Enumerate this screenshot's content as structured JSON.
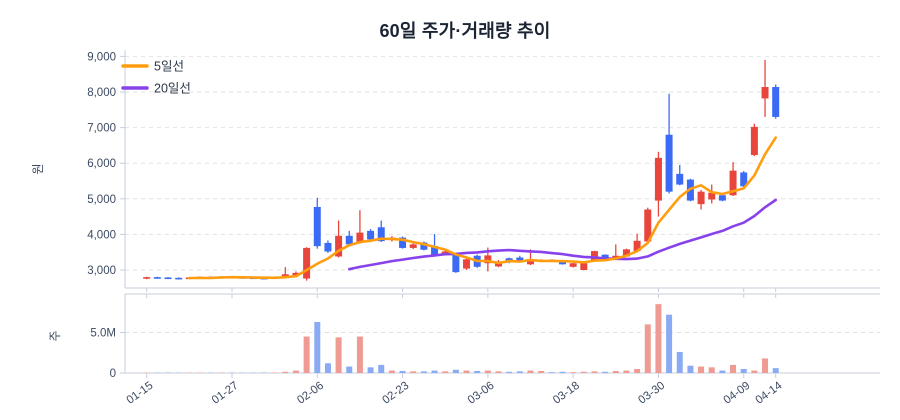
{
  "title": "60일 주가·거래량 추이",
  "legend": [
    {
      "label": "5일선",
      "color": "#ff9d0f"
    },
    {
      "label": "20일선",
      "color": "#8742ec"
    }
  ],
  "price_axis": {
    "unit_label": "원",
    "tick_values": [
      3000,
      4000,
      5000,
      6000,
      7000,
      8000,
      9000
    ],
    "tick_labels": [
      "3,000",
      "4,000",
      "5,000",
      "6,000",
      "7,000",
      "8,000",
      "9,000"
    ]
  },
  "volume_axis": {
    "unit_label": "주",
    "tick_values": [
      0,
      5
    ],
    "tick_labels": [
      "0",
      "5.0M"
    ]
  },
  "x_axis": {
    "ticks": [
      {
        "index": 0,
        "label": "01-15"
      },
      {
        "index": 8,
        "label": "01-27"
      },
      {
        "index": 16,
        "label": "02-06"
      },
      {
        "index": 24,
        "label": "02-23"
      },
      {
        "index": 32,
        "label": "03-06"
      },
      {
        "index": 40,
        "label": "03-18"
      },
      {
        "index": 48,
        "label": "03-30"
      },
      {
        "index": 56,
        "label": "04-09"
      },
      {
        "index": 59,
        "label": "04-14"
      }
    ]
  },
  "colors": {
    "up": "#e8463c",
    "down": "#3b6bf5",
    "vol_up": "#f09a94",
    "vol_down": "#8aabf3",
    "ma5": "#ff9d0f",
    "ma20": "#8742ec",
    "grid": "#e2e2e2",
    "axis": "#c7cfdb",
    "text": "#3c4a61",
    "title": "#1b2433"
  },
  "chart_data": {
    "type": "candlestick+volume",
    "title": "60일 주가·거래량 추이",
    "price_unit": "원",
    "volume_unit": "M주",
    "columns": [
      "open",
      "high",
      "low",
      "close",
      "volume_millions"
    ],
    "num_days": 60,
    "price_ylim": [
      2500,
      9200
    ],
    "volume_ylim": [
      0,
      9.8
    ],
    "grid": "dashed-horizontal",
    "legend_position": "top-left",
    "overlays": [
      {
        "name": "5일선",
        "type": "sma",
        "window": 5,
        "color": "#ff9d0f"
      },
      {
        "name": "20일선",
        "type": "sma",
        "window": 20,
        "color": "#8742ec"
      }
    ],
    "candles": [
      [
        2760,
        2810,
        2740,
        2800,
        0.05
      ],
      [
        2800,
        2810,
        2760,
        2770,
        0.04
      ],
      [
        2790,
        2800,
        2750,
        2760,
        0.05
      ],
      [
        2780,
        2790,
        2740,
        2750,
        0.03
      ],
      [
        2750,
        2800,
        2740,
        2790,
        0.04
      ],
      [
        2770,
        2820,
        2760,
        2810,
        0.05
      ],
      [
        2810,
        2820,
        2770,
        2780,
        0.04
      ],
      [
        2780,
        2830,
        2770,
        2820,
        0.05
      ],
      [
        2820,
        2830,
        2780,
        2790,
        0.04
      ],
      [
        2800,
        2810,
        2760,
        2780,
        0.03
      ],
      [
        2790,
        2800,
        2750,
        2770,
        0.04
      ],
      [
        2780,
        2790,
        2740,
        2760,
        0.05
      ],
      [
        2760,
        2820,
        2750,
        2800,
        0.06
      ],
      [
        2790,
        3080,
        2780,
        2880,
        0.15
      ],
      [
        2850,
        2960,
        2820,
        2920,
        0.3
      ],
      [
        2760,
        3640,
        2700,
        3620,
        4.5
      ],
      [
        4770,
        5030,
        3600,
        3670,
        6.3
      ],
      [
        3760,
        3830,
        3480,
        3520,
        1.2
      ],
      [
        3380,
        4390,
        3350,
        3960,
        4.4
      ],
      [
        3960,
        4100,
        3680,
        3720,
        0.8
      ],
      [
        3760,
        4680,
        3740,
        4050,
        4.5
      ],
      [
        4100,
        4150,
        3830,
        3860,
        0.7
      ],
      [
        4200,
        4390,
        3790,
        3810,
        1.0
      ],
      [
        3840,
        3950,
        3800,
        3910,
        0.3
      ],
      [
        3910,
        3940,
        3600,
        3620,
        0.25
      ],
      [
        3620,
        3760,
        3590,
        3720,
        0.2
      ],
      [
        3770,
        3800,
        3550,
        3570,
        0.2
      ],
      [
        3670,
        4010,
        3420,
        3430,
        0.3
      ],
      [
        3430,
        3560,
        3410,
        3520,
        0.2
      ],
      [
        3430,
        3450,
        2920,
        2940,
        0.4
      ],
      [
        3040,
        3330,
        3000,
        3300,
        0.3
      ],
      [
        3400,
        3430,
        3060,
        3090,
        0.25
      ],
      [
        3190,
        3630,
        2960,
        3410,
        0.3
      ],
      [
        3100,
        3280,
        3080,
        3240,
        0.2
      ],
      [
        3330,
        3350,
        3190,
        3215,
        0.15
      ],
      [
        3350,
        3400,
        3210,
        3230,
        0.2
      ],
      [
        3160,
        3580,
        3140,
        3310,
        0.3
      ],
      [
        3240,
        3300,
        3220,
        3280,
        0.25
      ],
      [
        3290,
        3300,
        3240,
        3250,
        0.1
      ],
      [
        3250,
        3270,
        3150,
        3160,
        0.15
      ],
      [
        3090,
        3200,
        3070,
        3190,
        0.1
      ],
      [
        3000,
        3200,
        2990,
        3190,
        0.15
      ],
      [
        3240,
        3540,
        3230,
        3530,
        0.2
      ],
      [
        3430,
        3440,
        3300,
        3310,
        0.15
      ],
      [
        3300,
        3720,
        3280,
        3400,
        0.25
      ],
      [
        3380,
        3600,
        3360,
        3580,
        0.3
      ],
      [
        3530,
        4020,
        3510,
        3820,
        0.5
      ],
      [
        3800,
        4750,
        3780,
        4700,
        6.0
      ],
      [
        4950,
        6320,
        4500,
        6150,
        8.5
      ],
      [
        6800,
        7950,
        5150,
        5200,
        7.2
      ],
      [
        5700,
        5950,
        5380,
        5400,
        2.6
      ],
      [
        5540,
        5560,
        4930,
        4950,
        0.9
      ],
      [
        4850,
        5250,
        4700,
        5200,
        0.8
      ],
      [
        4980,
        5400,
        4870,
        5170,
        0.7
      ],
      [
        5100,
        5150,
        4930,
        4950,
        0.3
      ],
      [
        5100,
        6030,
        5080,
        5790,
        1.0
      ],
      [
        5740,
        5780,
        5330,
        5350,
        0.5
      ],
      [
        6230,
        7110,
        6200,
        7020,
        0.3
      ],
      [
        7820,
        8900,
        7300,
        8140,
        1.8
      ],
      [
        8140,
        8210,
        7250,
        7300,
        0.6
      ]
    ]
  }
}
